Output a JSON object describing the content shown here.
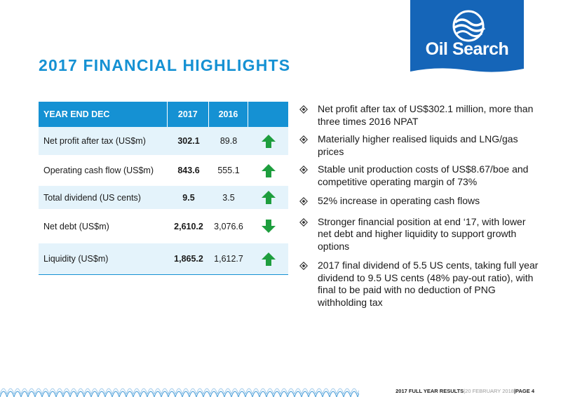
{
  "title": "2017 FINANCIAL HIGHLIGHTS",
  "logo": {
    "text": "Oil Search"
  },
  "table": {
    "headers": [
      "YEAR END DEC",
      "2017",
      "2016",
      ""
    ],
    "rows": [
      {
        "label": "Net profit after tax (US$m)",
        "v2017": "302.1",
        "v2016": "89.8",
        "trend": "up"
      },
      {
        "label": "Operating cash flow (US$m)",
        "v2017": "843.6",
        "v2016": "555.1",
        "trend": "up"
      },
      {
        "label": "Total dividend (US cents)",
        "v2017": "9.5",
        "v2016": "3.5",
        "trend": "up"
      },
      {
        "label": "Net debt (US$m)",
        "v2017": "2,610.2",
        "v2016": "3,076.6",
        "trend": "down"
      },
      {
        "label": "Liquidity (US$m)",
        "v2017": "1,865.2",
        "v2016": "1,612.7",
        "trend": "up"
      }
    ],
    "arrow_color": "#1e9e3e"
  },
  "bullets": [
    "Net profit after tax of US$302.1 million, more than three times 2016 NPAT",
    "Materially higher realised liquids and LNG/gas prices",
    "Stable unit production costs of US$8.67/boe and competitive operating margin of 73%",
    "52% increase in operating cash flows",
    "Stronger financial position at end ‘17, with lower net debt and higher liquidity to support growth options",
    "2017 final dividend of 5.5 US cents, taking full year dividend to 9.5 US cents (48% pay-out ratio), with final to be paid with no deduction of PNG withholding tax"
  ],
  "footer": {
    "label": "2017 FULL YEAR RESULTS",
    "sep1": " | ",
    "date": "20 FEBRUARY 2018",
    "sep2": "  |  ",
    "page": "PAGE 4"
  },
  "colors": {
    "accent": "#1591d3",
    "logo_bg": "#1565b8",
    "row_alt": "#e4f3fb"
  }
}
